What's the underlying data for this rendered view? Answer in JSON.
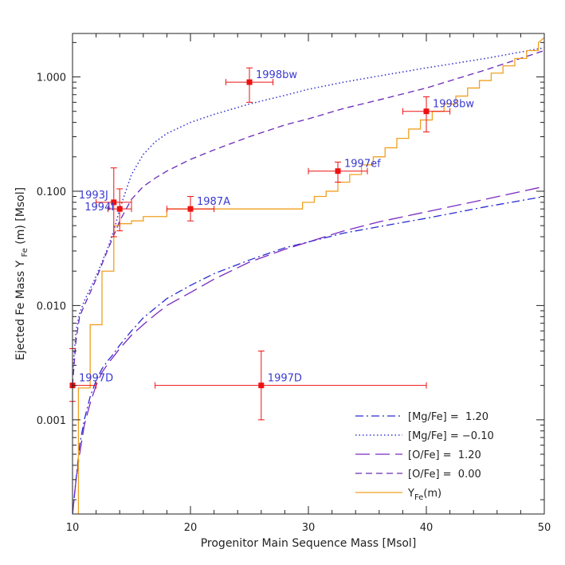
{
  "chart_data": {
    "type": "scatter",
    "xlabel": "Progenitor Main Sequence Mass [Msol]",
    "ylabel": "Ejected Fe Mass",
    "ylabel_symbol": "Y",
    "ylabel_sub": "Fe",
    "ylabel_suffix": "(m) [Msol]",
    "xlim": [
      10,
      50
    ],
    "ylim": [
      0.00015,
      2.4
    ],
    "yscale": "log",
    "xticks": [
      {
        "value": 10,
        "label": "10"
      },
      {
        "value": 20,
        "label": "20"
      },
      {
        "value": 30,
        "label": "30"
      },
      {
        "value": 40,
        "label": "40"
      },
      {
        "value": 50,
        "label": "50"
      }
    ],
    "yticks": [
      {
        "value": 0.001,
        "label": "0.001"
      },
      {
        "value": 0.01,
        "label": "0.010"
      },
      {
        "value": 0.1,
        "label": "0.100"
      },
      {
        "value": 1.0,
        "label": "1.000"
      }
    ],
    "points": [
      {
        "label": "1993J",
        "x": 13.5,
        "y": 0.08,
        "xerr": [
          12,
          15
        ],
        "yerr": [
          0.04,
          0.16
        ],
        "label_side": "left"
      },
      {
        "label": "1994I",
        "x": 14,
        "y": 0.07,
        "xerr": [
          13,
          15
        ],
        "yerr": [
          0.045,
          0.105
        ],
        "label_side": "left"
      },
      {
        "label": "1987A",
        "x": 20,
        "y": 0.07,
        "xerr": [
          18,
          22
        ],
        "yerr": [
          0.055,
          0.09
        ],
        "label_side": "right"
      },
      {
        "label": "1998bw",
        "x": 25,
        "y": 0.9,
        "xerr": [
          23,
          27
        ],
        "yerr": [
          0.6,
          1.2
        ],
        "label_side": "right"
      },
      {
        "label": "1997ef",
        "x": 32.5,
        "y": 0.15,
        "xerr": [
          30,
          35
        ],
        "yerr": [
          0.12,
          0.18
        ],
        "label_side": "right"
      },
      {
        "label": "1998bw",
        "x": 40,
        "y": 0.5,
        "xerr": [
          38,
          42
        ],
        "yerr": [
          0.33,
          0.67
        ],
        "label_side": "right"
      },
      {
        "label": "1997D",
        "x": 10,
        "y": 0.002,
        "xerr": [
          10,
          12
        ],
        "yerr": [
          0.00145,
          0.0042
        ],
        "label_side": "right"
      },
      {
        "label": "1997D",
        "x": 26,
        "y": 0.002,
        "xerr": [
          17,
          40
        ],
        "yerr": [
          0.001,
          0.004
        ],
        "label_side": "right"
      }
    ],
    "curves": [
      {
        "name": "[Mg/Fe] =  1.20",
        "style": "dashdot",
        "color": "#2a2ad0",
        "x": [
          10,
          10.3,
          10.6,
          11,
          11.5,
          12,
          12.5,
          13,
          13.5,
          14,
          15,
          16,
          17,
          18,
          20,
          22,
          25,
          28,
          30,
          33,
          36,
          40,
          45,
          50
        ],
        "y": [
          0.00015,
          0.0003,
          0.0006,
          0.001,
          0.0016,
          0.0022,
          0.0028,
          0.0033,
          0.0038,
          0.0045,
          0.006,
          0.0078,
          0.0095,
          0.0115,
          0.015,
          0.019,
          0.025,
          0.032,
          0.036,
          0.043,
          0.049,
          0.058,
          0.073,
          0.09
        ]
      },
      {
        "name": "[Mg/Fe] = −0.10",
        "style": "dotted",
        "color": "#3a3ad0",
        "x": [
          10,
          10.3,
          10.6,
          11,
          11.5,
          12,
          12.5,
          13,
          13.5,
          14,
          15,
          16,
          17,
          18,
          20,
          22,
          25,
          28,
          30,
          33,
          36,
          40,
          45,
          50
        ],
        "y": [
          0.0025,
          0.006,
          0.0085,
          0.011,
          0.014,
          0.018,
          0.024,
          0.032,
          0.045,
          0.07,
          0.14,
          0.21,
          0.27,
          0.32,
          0.4,
          0.47,
          0.58,
          0.69,
          0.78,
          0.9,
          1.02,
          1.2,
          1.45,
          1.8
        ]
      },
      {
        "name": "[O/Fe] =  1.20",
        "style": "longdash",
        "color": "#7a2ac0",
        "x": [
          10,
          10.3,
          10.6,
          11,
          11.5,
          12,
          12.5,
          13,
          13.5,
          14,
          15,
          16,
          17,
          18,
          20,
          22,
          25,
          28,
          30,
          33,
          36,
          40,
          45,
          50
        ],
        "y": [
          0.00015,
          0.0003,
          0.0005,
          0.0009,
          0.0014,
          0.002,
          0.0026,
          0.0031,
          0.0036,
          0.0042,
          0.0055,
          0.0068,
          0.0083,
          0.01,
          0.013,
          0.017,
          0.024,
          0.031,
          0.036,
          0.045,
          0.054,
          0.066,
          0.085,
          0.11
        ]
      },
      {
        "name": "[O/Fe] =  0.00",
        "style": "dashed",
        "color": "#6a2ab8",
        "x": [
          10,
          10.3,
          10.6,
          11,
          11.5,
          12,
          12.5,
          13,
          13.5,
          14,
          15,
          16,
          17,
          18,
          20,
          22,
          25,
          28,
          30,
          33,
          36,
          40,
          45,
          50
        ],
        "y": [
          0.002,
          0.005,
          0.008,
          0.01,
          0.013,
          0.017,
          0.023,
          0.031,
          0.041,
          0.055,
          0.085,
          0.11,
          0.13,
          0.15,
          0.19,
          0.23,
          0.3,
          0.38,
          0.43,
          0.53,
          0.63,
          0.8,
          1.15,
          1.7
        ]
      },
      {
        "name": "(m)",
        "legend_symbol": "Y",
        "legend_sub": "Fe",
        "style": "step",
        "color": "#f0a020",
        "x": [
          10.5,
          10.5,
          11.5,
          11.5,
          12.5,
          12.5,
          13.5,
          13.5,
          14,
          14,
          15,
          15,
          16,
          16,
          18,
          18,
          29.5,
          29.5,
          30.5,
          30.5,
          31.5,
          31.5,
          32.5,
          32.5,
          33.5,
          33.5,
          34.5,
          34.5,
          35.5,
          35.5,
          36.5,
          36.5,
          37.5,
          37.5,
          38.5,
          38.5,
          39.5,
          39.5,
          40.5,
          40.5,
          41.5,
          41.5,
          42.5,
          42.5,
          43.5,
          43.5,
          44.5,
          44.5,
          45.5,
          45.5,
          46.5,
          46.5,
          47.5,
          47.5,
          48.5,
          48.5,
          49.5,
          49.5,
          50
        ],
        "y": [
          0.00015,
          0.0019,
          0.0019,
          0.0068,
          0.0068,
          0.02,
          0.02,
          0.05,
          0.05,
          0.052,
          0.052,
          0.055,
          0.055,
          0.06,
          0.06,
          0.07,
          0.07,
          0.08,
          0.08,
          0.09,
          0.09,
          0.1,
          0.1,
          0.12,
          0.12,
          0.14,
          0.14,
          0.17,
          0.17,
          0.2,
          0.2,
          0.24,
          0.24,
          0.29,
          0.29,
          0.35,
          0.35,
          0.42,
          0.42,
          0.5,
          0.5,
          0.58,
          0.58,
          0.68,
          0.68,
          0.8,
          0.8,
          0.93,
          0.93,
          1.08,
          1.08,
          1.25,
          1.25,
          1.45,
          1.45,
          1.7,
          1.7,
          2.0,
          2.2
        ]
      }
    ],
    "legend_placement": "bottom-right",
    "grid": false,
    "colors": {
      "points": "#ee1111",
      "labels": "#3a3ad0",
      "axes": "#222222"
    }
  }
}
